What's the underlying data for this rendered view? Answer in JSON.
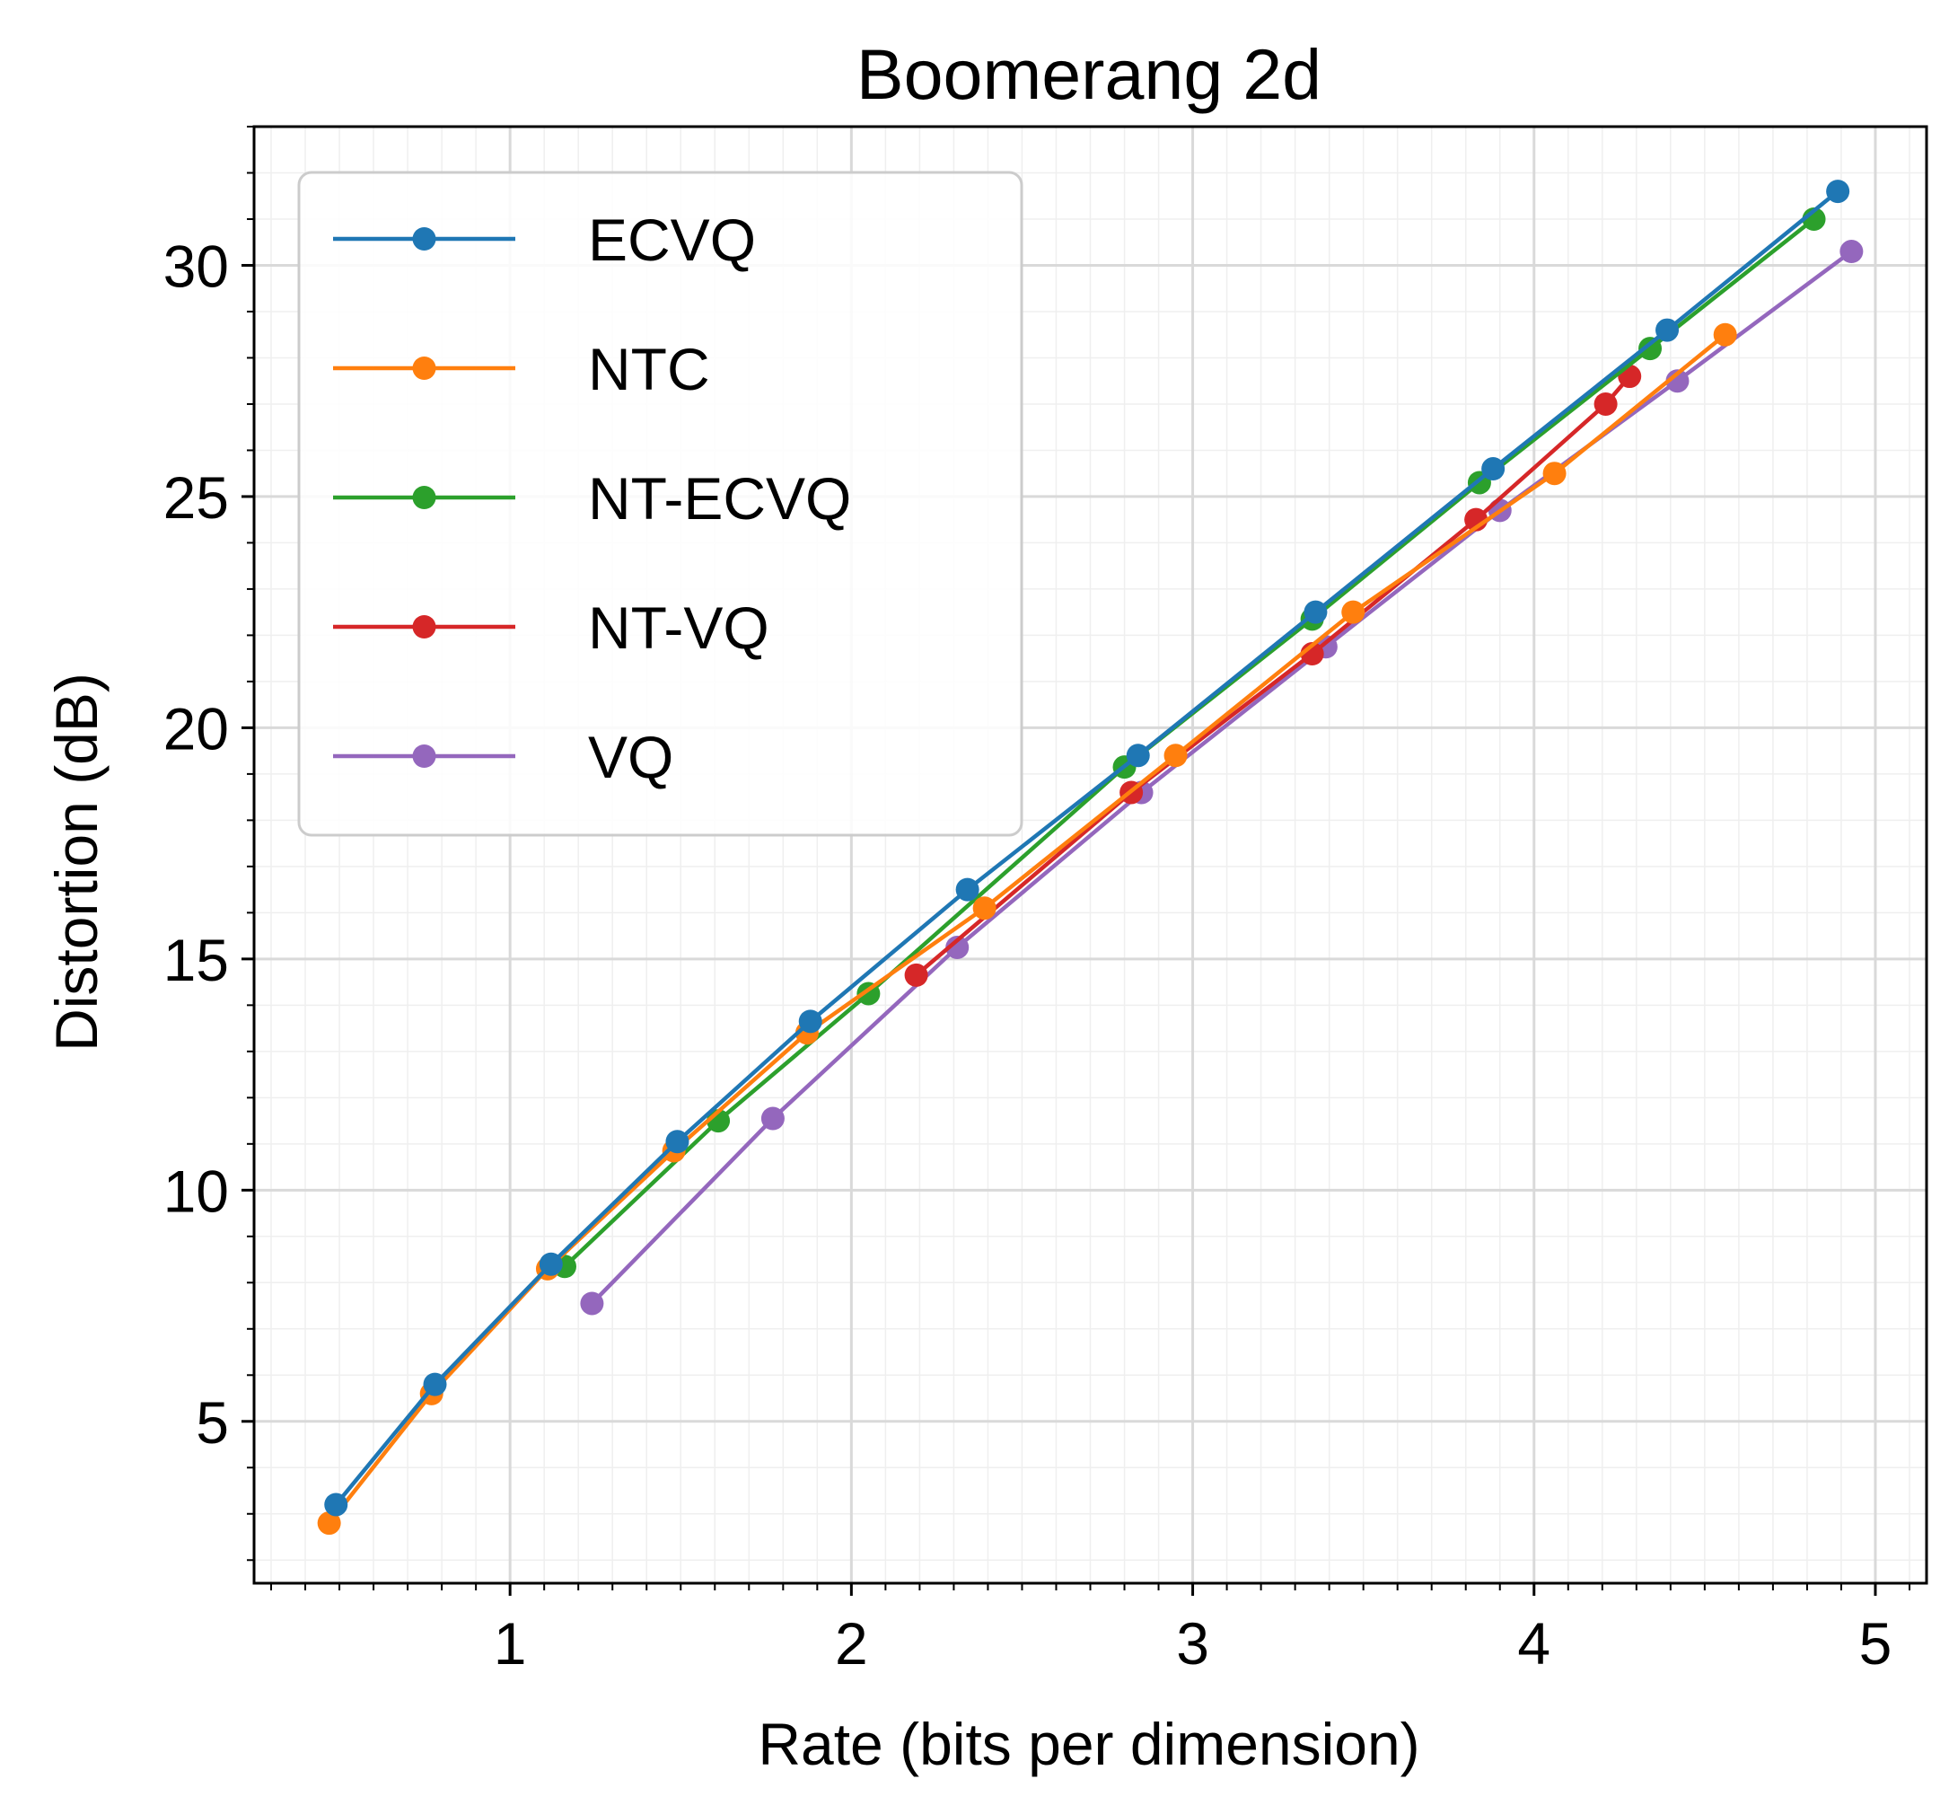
{
  "chart_data": {
    "type": "line",
    "title": "Boomerang 2d",
    "xlabel": "Rate (bits per dimension)",
    "ylabel": "Distortion (dB)",
    "xlim": [
      0.25,
      5.15
    ],
    "ylim": [
      1.5,
      33.0
    ],
    "xticks": [
      1,
      2,
      3,
      4,
      5
    ],
    "yticks": [
      5,
      10,
      15,
      20,
      25,
      30
    ],
    "grid": true,
    "minor_grid": true,
    "legend_position": "upper-left",
    "series": [
      {
        "name": "ECVQ",
        "color": "#1f77b4",
        "x": [
          0.49,
          0.78,
          1.12,
          1.49,
          1.88,
          2.34,
          2.84,
          3.36,
          3.88,
          4.39,
          4.89
        ],
        "y": [
          3.2,
          5.8,
          8.4,
          11.05,
          13.65,
          16.5,
          19.4,
          22.5,
          25.6,
          28.6,
          31.6
        ]
      },
      {
        "name": "NTC",
        "color": "#ff7f0e",
        "x": [
          0.47,
          0.77,
          1.11,
          1.48,
          1.87,
          2.39,
          2.95,
          3.47,
          4.06,
          4.56
        ],
        "y": [
          2.8,
          5.6,
          8.3,
          10.85,
          13.4,
          16.1,
          19.4,
          22.5,
          25.5,
          28.5
        ]
      },
      {
        "name": "NT-ECVQ",
        "color": "#2ca02c",
        "x": [
          1.16,
          1.61,
          2.05,
          2.8,
          3.35,
          3.84,
          4.34,
          4.82
        ],
        "y": [
          8.35,
          11.5,
          14.25,
          19.15,
          22.35,
          25.3,
          28.2,
          31.0
        ]
      },
      {
        "name": "NT-VQ",
        "color": "#d62728",
        "x": [
          2.19,
          2.82,
          3.35,
          3.83,
          4.21,
          4.28
        ],
        "y": [
          14.65,
          18.6,
          21.6,
          24.5,
          27.0,
          27.6
        ]
      },
      {
        "name": "VQ",
        "color": "#9467bd",
        "x": [
          1.24,
          1.77,
          2.31,
          2.85,
          3.39,
          3.9,
          4.42,
          4.93
        ],
        "y": [
          7.55,
          11.55,
          15.25,
          18.6,
          21.75,
          24.7,
          27.5,
          30.3
        ]
      }
    ]
  }
}
